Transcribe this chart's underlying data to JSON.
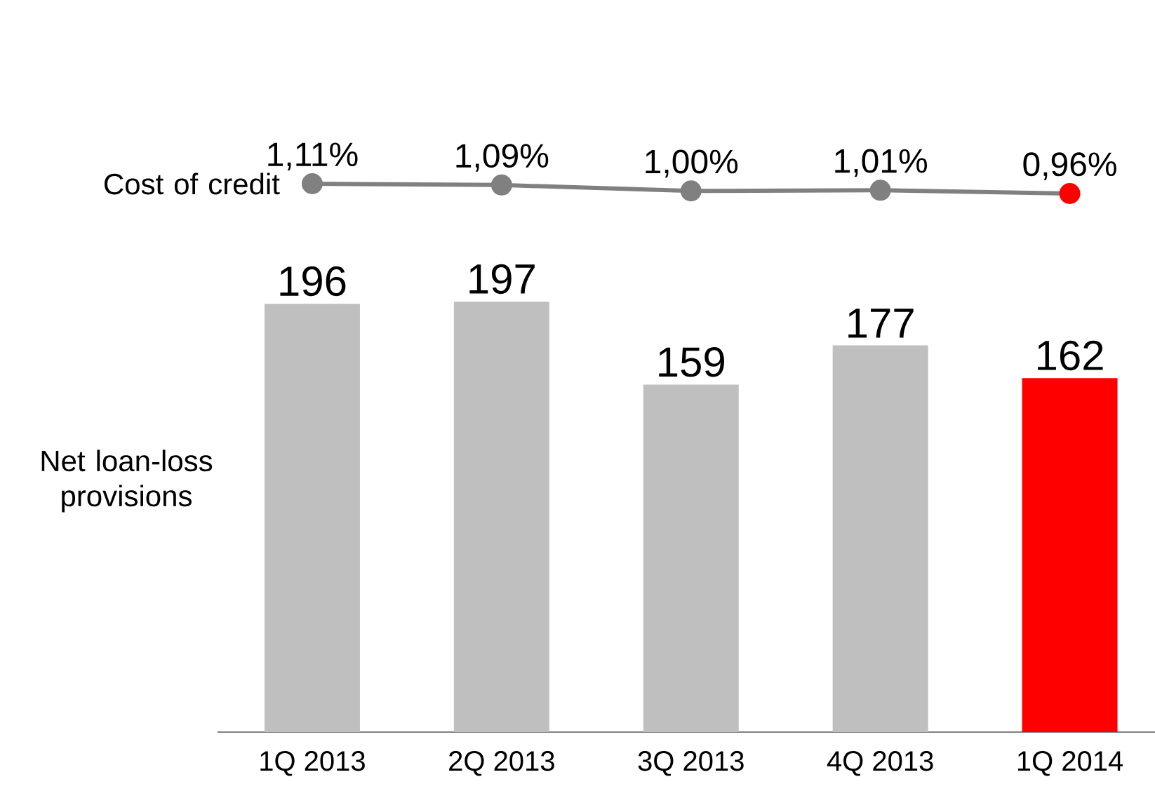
{
  "chart_data": [
    {
      "type": "line",
      "categories": [
        null,
        null,
        null,
        null,
        null
      ],
      "tick_labels": false,
      "marker": "circle",
      "series": [
        {
          "name": "Cost of credit",
          "color": "#808080",
          "values": [
            1.11,
            1.09,
            1.0,
            1.01,
            0.96
          ],
          "colors": [
            "#808080",
            "#808080",
            "#808080",
            "#808080",
            "#ff0000"
          ],
          "value_labels": [
            "1,11%",
            "1,09%",
            "1,00%",
            "1,01%",
            "0,96%"
          ]
        }
      ]
    },
    {
      "type": "bar",
      "categories": [
        "1Q 2013",
        "2Q 2013",
        "3Q 2013",
        "4Q 2013",
        "1Q 2014"
      ],
      "data_labels": true,
      "tick_labels": "x",
      "series": [
        {
          "name": "Net loan-loss provisions",
          "values": [
            196,
            197,
            159,
            177,
            162
          ],
          "colors": [
            "#bfbfbf",
            "#bfbfbf",
            "#bfbfbf",
            "#bfbfbf",
            "#ff0000"
          ]
        }
      ]
    }
  ]
}
